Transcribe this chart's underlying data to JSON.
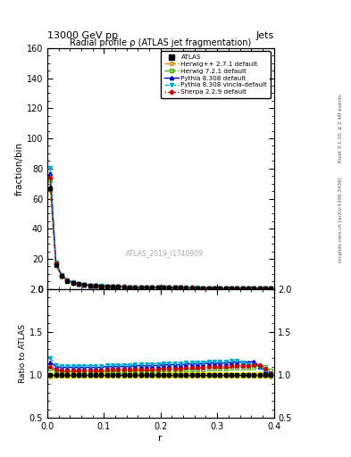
{
  "title_top": "13000 GeV pp",
  "title_right": "Jets",
  "plot_title": "Radial profile ρ (ATLAS jet fragmentation)",
  "xlabel": "r",
  "ylabel_main": "fraction/bin",
  "ylabel_ratio": "Ratio to ATLAS",
  "watermark": "ATLAS_2019_I1740909",
  "right_label_top": "Rivet 3.1.10, ≥ 2.4M events",
  "right_label_bottom": "mcplots.cern.ch [arXiv:1306.3436]",
  "r_values": [
    0.005,
    0.015,
    0.025,
    0.035,
    0.045,
    0.055,
    0.065,
    0.075,
    0.085,
    0.095,
    0.105,
    0.115,
    0.125,
    0.135,
    0.145,
    0.155,
    0.165,
    0.175,
    0.185,
    0.195,
    0.205,
    0.215,
    0.225,
    0.235,
    0.245,
    0.255,
    0.265,
    0.275,
    0.285,
    0.295,
    0.305,
    0.315,
    0.325,
    0.335,
    0.345,
    0.355,
    0.365,
    0.375,
    0.385,
    0.395
  ],
  "atlas_data": [
    67.0,
    16.0,
    8.5,
    5.5,
    4.0,
    3.2,
    2.7,
    2.3,
    2.0,
    1.8,
    1.65,
    1.5,
    1.4,
    1.3,
    1.2,
    1.1,
    1.05,
    1.0,
    0.95,
    0.9,
    0.87,
    0.84,
    0.81,
    0.78,
    0.75,
    0.72,
    0.7,
    0.67,
    0.65,
    0.63,
    0.61,
    0.59,
    0.57,
    0.55,
    0.53,
    0.51,
    0.49,
    0.47,
    0.45,
    0.43
  ],
  "atlas_err": [
    2.0,
    0.5,
    0.3,
    0.2,
    0.15,
    0.12,
    0.1,
    0.09,
    0.08,
    0.07,
    0.06,
    0.06,
    0.05,
    0.05,
    0.05,
    0.04,
    0.04,
    0.04,
    0.04,
    0.03,
    0.03,
    0.03,
    0.03,
    0.03,
    0.03,
    0.03,
    0.02,
    0.02,
    0.02,
    0.02,
    0.02,
    0.02,
    0.02,
    0.02,
    0.02,
    0.02,
    0.02,
    0.02,
    0.02,
    0.02
  ],
  "herwig_pp_ratio": [
    0.98,
    0.99,
    0.99,
    0.99,
    0.99,
    0.99,
    0.99,
    0.99,
    0.99,
    0.99,
    0.99,
    0.99,
    0.99,
    0.99,
    0.99,
    0.99,
    0.99,
    0.99,
    0.99,
    0.99,
    0.99,
    0.99,
    0.99,
    0.99,
    0.99,
    0.99,
    0.99,
    0.99,
    0.99,
    0.99,
    0.99,
    0.99,
    0.99,
    0.99,
    0.99,
    0.99,
    0.99,
    0.99,
    0.99,
    0.98
  ],
  "herwig72_ratio": [
    1.08,
    1.05,
    1.04,
    1.04,
    1.04,
    1.04,
    1.04,
    1.04,
    1.04,
    1.04,
    1.04,
    1.04,
    1.04,
    1.04,
    1.04,
    1.05,
    1.05,
    1.05,
    1.05,
    1.05,
    1.06,
    1.06,
    1.06,
    1.06,
    1.07,
    1.07,
    1.07,
    1.07,
    1.08,
    1.08,
    1.08,
    1.08,
    1.09,
    1.09,
    1.09,
    1.09,
    1.1,
    1.1,
    1.1,
    1.05
  ],
  "pythia_ratio": [
    1.15,
    1.1,
    1.09,
    1.09,
    1.09,
    1.09,
    1.09,
    1.09,
    1.09,
    1.09,
    1.1,
    1.1,
    1.1,
    1.1,
    1.1,
    1.11,
    1.11,
    1.11,
    1.11,
    1.11,
    1.12,
    1.12,
    1.12,
    1.12,
    1.13,
    1.13,
    1.13,
    1.13,
    1.14,
    1.14,
    1.14,
    1.14,
    1.15,
    1.15,
    1.15,
    1.15,
    1.16,
    1.1,
    1.05,
    1.0
  ],
  "pythia_vincia_ratio": [
    1.2,
    1.12,
    1.11,
    1.11,
    1.11,
    1.11,
    1.11,
    1.11,
    1.11,
    1.11,
    1.12,
    1.12,
    1.12,
    1.12,
    1.12,
    1.13,
    1.13,
    1.13,
    1.13,
    1.13,
    1.14,
    1.14,
    1.14,
    1.14,
    1.15,
    1.15,
    1.15,
    1.15,
    1.16,
    1.16,
    1.16,
    1.16,
    1.17,
    1.17,
    1.15,
    1.13,
    1.12,
    1.1,
    1.05,
    1.02
  ],
  "sherpa_ratio": [
    1.1,
    1.06,
    1.05,
    1.05,
    1.05,
    1.05,
    1.05,
    1.05,
    1.05,
    1.05,
    1.06,
    1.06,
    1.06,
    1.06,
    1.06,
    1.07,
    1.07,
    1.07,
    1.07,
    1.07,
    1.08,
    1.08,
    1.08,
    1.08,
    1.09,
    1.09,
    1.09,
    1.09,
    1.1,
    1.1,
    1.1,
    1.1,
    1.11,
    1.11,
    1.11,
    1.11,
    1.12,
    1.12,
    1.08,
    1.02
  ],
  "atlas_ratio_err": [
    0.03,
    0.03,
    0.03,
    0.03,
    0.03,
    0.03,
    0.03,
    0.03,
    0.03,
    0.03,
    0.03,
    0.03,
    0.03,
    0.03,
    0.03,
    0.03,
    0.03,
    0.03,
    0.03,
    0.03,
    0.03,
    0.03,
    0.03,
    0.03,
    0.03,
    0.03,
    0.03,
    0.03,
    0.03,
    0.03,
    0.03,
    0.03,
    0.03,
    0.03,
    0.03,
    0.03,
    0.03,
    0.03,
    0.03,
    0.03
  ],
  "colors": {
    "atlas": "#000000",
    "herwig_pp": "#cc8800",
    "herwig72": "#44aa00",
    "pythia": "#0000cc",
    "pythia_vincia": "#00aacc",
    "sherpa": "#cc0000"
  },
  "ylim_main": [
    0,
    160
  ],
  "ylim_ratio": [
    0.5,
    2.0
  ],
  "yticks_main": [
    0,
    20,
    40,
    60,
    80,
    100,
    120,
    140,
    160
  ],
  "yticks_ratio": [
    0.5,
    1.0,
    1.5,
    2.0
  ],
  "xlim": [
    0,
    0.4
  ]
}
